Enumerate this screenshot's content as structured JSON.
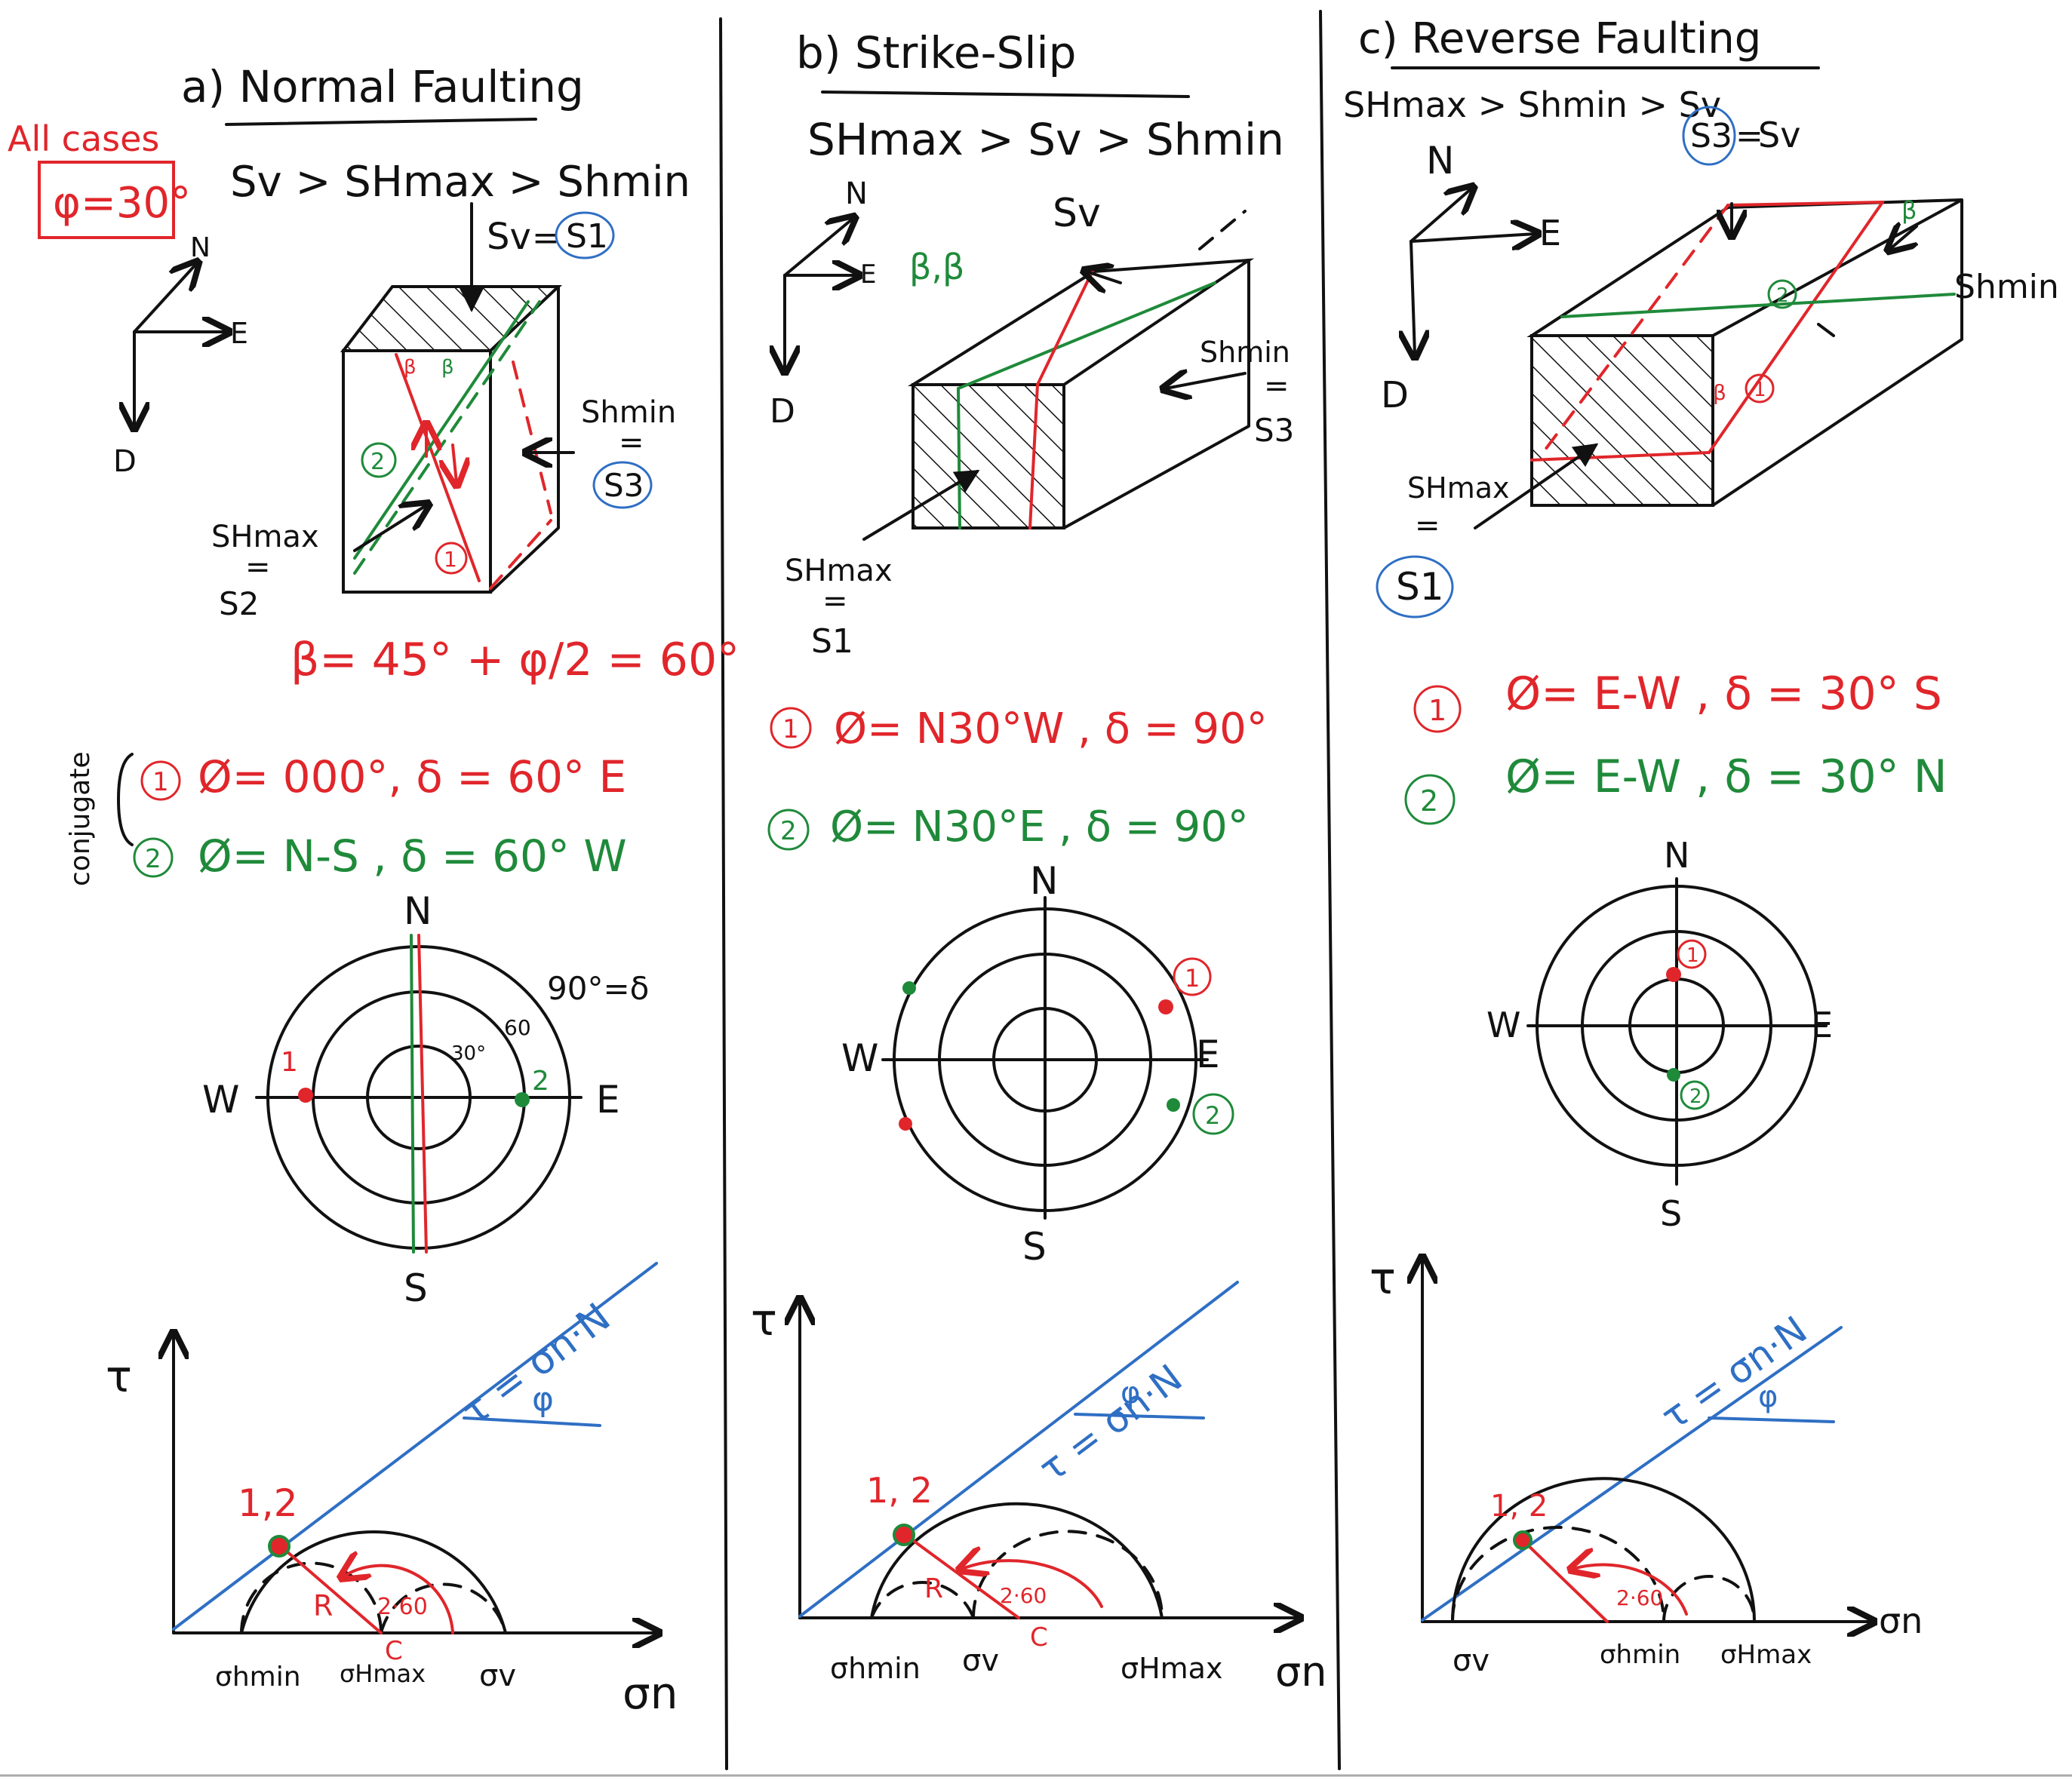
{
  "note": {
    "all_cases": "All cases",
    "phi": "φ=30°"
  },
  "axes_label": {
    "n": "N",
    "e": "E",
    "d": "D"
  },
  "panels": [
    {
      "title": "a) Normal Faulting",
      "stress_order": "Sv > SHmax > Shmin",
      "labels": {
        "sv": "Sv",
        "s1": "S1",
        "shmin": "Shmin",
        "s3": "S3",
        "shmax": "SHmax",
        "eq": "=",
        "s2": "S2",
        "beta": "β"
      },
      "beta_formula": "β= 45° + φ/2 = 60°",
      "conjugate": "conjugate",
      "planes": [
        {
          "num": "1",
          "text": "Ø= 000°, δ = 60° E"
        },
        {
          "num": "2",
          "text": "Ø= N-S , δ = 60° W"
        }
      ],
      "stereonet": {
        "n": "N",
        "s": "S",
        "e": "E",
        "w": "W",
        "ring90": "90°=δ",
        "ring60": "60",
        "ring30": "30°",
        "pole1": "1",
        "pole2": "2"
      },
      "mohr": {
        "tau": "τ",
        "sigma_n": "σn",
        "envelope": "τ = σn·N",
        "phi": "φ",
        "point": "1,2",
        "r": "R",
        "c": "C",
        "angle": "2·60",
        "x1": "σhmin",
        "x2": "σHmax",
        "x3": "σv"
      }
    },
    {
      "title": "b) Strike-Slip",
      "stress_order": "SHmax > Sv > Shmin",
      "labels": {
        "sv": "Sv",
        "shmin": "Shmin",
        "s3": "S3",
        "shmax": "SHmax",
        "eq": "=",
        "s1": "S1",
        "beta_pair": "β,β"
      },
      "planes": [
        {
          "num": "1",
          "text": "Ø= N30°W , δ = 90°"
        },
        {
          "num": "2",
          "text": "Ø= N30°E , δ = 90°"
        }
      ],
      "stereonet": {
        "n": "N",
        "s": "S",
        "e": "E",
        "w": "W",
        "pole1": "1",
        "pole2": "2"
      },
      "mohr": {
        "tau": "τ",
        "sigma_n": "σn",
        "envelope": "τ = σn·N",
        "phi": "φ",
        "point": "1, 2",
        "r": "R",
        "c": "C",
        "angle": "2·60",
        "x1": "σhmin",
        "x2": "σv",
        "x3": "σHmax"
      }
    },
    {
      "title": "c) Reverse Faulting",
      "stress_order": "SHmax > Shmin > Sv",
      "labels": {
        "s3": "S3",
        "sv": "Sv",
        "shmin": "Shmin",
        "shmax": "SHmax",
        "eq": "=",
        "s1": "S1",
        "beta": "β"
      },
      "planes": [
        {
          "num": "1",
          "text": "Ø= E-W , δ = 30° S"
        },
        {
          "num": "2",
          "text": "Ø= E-W , δ = 30° N"
        }
      ],
      "stereonet": {
        "n": "N",
        "s": "S",
        "e": "E",
        "w": "W",
        "pole1": "1",
        "pole2": "2"
      },
      "mohr": {
        "tau": "τ",
        "sigma_n": "σn",
        "envelope": "τ = σn·N",
        "phi": "φ",
        "point": "1, 2",
        "angle": "2·60",
        "x1": "σv",
        "x2": "σhmin",
        "x3": "σHmax"
      }
    }
  ]
}
